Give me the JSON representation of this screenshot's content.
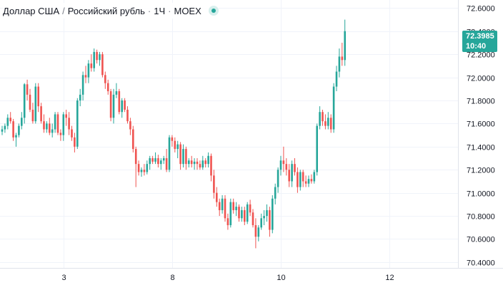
{
  "header": {
    "symbol": "Доллар США",
    "separator1": "/",
    "quote": "Российский рубль",
    "separator2": "·",
    "interval": "1Ч",
    "separator3": "·",
    "exchange": "MOEX"
  },
  "last_price": {
    "value": "72.3985",
    "countdown": "10:40"
  },
  "colors": {
    "up": "#26a69a",
    "down": "#ef5350",
    "grid": "#f0f3fa",
    "axis_text": "#131722",
    "axis_line": "#e0e3eb"
  },
  "chart_data": {
    "type": "candlestick",
    "title": "",
    "xlabel": "",
    "ylabel": "",
    "ylim": [
      70.35,
      72.67
    ],
    "grid": true,
    "y_ticks": [
      "72.6000",
      "72.4000",
      "72.2000",
      "72.0000",
      "71.8000",
      "71.6000",
      "71.4000",
      "71.2000",
      "71.0000",
      "70.8000",
      "70.6000",
      "70.4000"
    ],
    "x_ticks": [
      {
        "label": "3",
        "index": 22
      },
      {
        "label": "8",
        "index": 61
      },
      {
        "label": "10",
        "index": 100
      },
      {
        "label": "12",
        "index": 139
      }
    ],
    "ohlc": [
      [
        71.53,
        71.58,
        71.5,
        71.55
      ],
      [
        71.55,
        71.6,
        71.52,
        71.58
      ],
      [
        71.58,
        71.68,
        71.55,
        71.65
      ],
      [
        71.65,
        71.7,
        71.6,
        71.62
      ],
      [
        71.62,
        71.64,
        71.45,
        71.48
      ],
      [
        71.48,
        71.52,
        71.4,
        71.5
      ],
      [
        71.5,
        71.6,
        71.48,
        71.58
      ],
      [
        71.58,
        71.7,
        71.55,
        71.65
      ],
      [
        71.65,
        71.95,
        71.6,
        71.94
      ],
      [
        71.94,
        71.98,
        71.8,
        71.85
      ],
      [
        71.85,
        71.9,
        71.7,
        71.72
      ],
      [
        71.72,
        71.78,
        71.6,
        71.62
      ],
      [
        71.62,
        71.95,
        71.6,
        71.92
      ],
      [
        71.92,
        71.95,
        71.7,
        71.75
      ],
      [
        71.75,
        71.78,
        71.6,
        71.62
      ],
      [
        71.62,
        71.68,
        71.52,
        71.55
      ],
      [
        71.55,
        71.62,
        71.52,
        71.6
      ],
      [
        71.6,
        71.65,
        71.5,
        71.52
      ],
      [
        71.52,
        71.6,
        71.48,
        71.55
      ],
      [
        71.55,
        71.7,
        71.52,
        71.68
      ],
      [
        71.68,
        71.7,
        71.5,
        71.52
      ],
      [
        71.52,
        71.55,
        71.45,
        71.5
      ],
      [
        71.5,
        71.7,
        71.45,
        71.68
      ],
      [
        71.68,
        71.72,
        71.58,
        71.65
      ],
      [
        71.65,
        71.7,
        71.5,
        71.55
      ],
      [
        71.55,
        71.58,
        71.45,
        71.48
      ],
      [
        71.48,
        71.52,
        71.35,
        71.4
      ],
      [
        71.4,
        71.82,
        71.38,
        71.8
      ],
      [
        71.8,
        71.9,
        71.75,
        71.85
      ],
      [
        71.85,
        72.05,
        71.8,
        72.02
      ],
      [
        72.02,
        72.1,
        71.95,
        72.0
      ],
      [
        72.0,
        72.15,
        71.95,
        72.12
      ],
      [
        72.12,
        72.2,
        72.05,
        72.08
      ],
      [
        72.08,
        72.25,
        72.05,
        72.22
      ],
      [
        72.22,
        72.24,
        72.12,
        72.15
      ],
      [
        72.15,
        72.22,
        72.1,
        72.2
      ],
      [
        72.2,
        72.22,
        72.0,
        72.02
      ],
      [
        72.02,
        72.05,
        71.9,
        71.95
      ],
      [
        71.95,
        71.98,
        71.85,
        71.88
      ],
      [
        71.88,
        71.9,
        71.62,
        71.65
      ],
      [
        71.65,
        71.9,
        71.6,
        71.85
      ],
      [
        71.85,
        71.95,
        71.82,
        71.88
      ],
      [
        71.88,
        71.9,
        71.68,
        71.7
      ],
      [
        71.7,
        71.82,
        71.65,
        71.8
      ],
      [
        71.8,
        71.82,
        71.7,
        71.72
      ],
      [
        71.72,
        71.75,
        71.6,
        71.62
      ],
      [
        71.62,
        71.65,
        71.5,
        71.55
      ],
      [
        71.55,
        71.58,
        71.35,
        71.38
      ],
      [
        71.38,
        71.4,
        71.05,
        71.25
      ],
      [
        71.25,
        71.28,
        71.15,
        71.18
      ],
      [
        71.18,
        71.22,
        71.14,
        71.2
      ],
      [
        71.2,
        71.25,
        71.15,
        71.18
      ],
      [
        71.18,
        71.28,
        71.16,
        71.25
      ],
      [
        71.25,
        71.32,
        71.2,
        71.3
      ],
      [
        71.3,
        71.32,
        71.25,
        71.27
      ],
      [
        71.27,
        71.35,
        71.25,
        71.3
      ],
      [
        71.3,
        71.33,
        71.22,
        71.25
      ],
      [
        71.25,
        71.3,
        71.2,
        71.28
      ],
      [
        71.28,
        71.32,
        71.25,
        71.3
      ],
      [
        71.3,
        71.38,
        71.18,
        71.2
      ],
      [
        71.2,
        71.5,
        71.18,
        71.48
      ],
      [
        71.48,
        71.5,
        71.4,
        71.45
      ],
      [
        71.45,
        71.48,
        71.35,
        71.38
      ],
      [
        71.38,
        71.45,
        71.3,
        71.42
      ],
      [
        71.42,
        71.44,
        71.2,
        71.25
      ],
      [
        71.25,
        71.42,
        71.22,
        71.38
      ],
      [
        71.38,
        71.4,
        71.2,
        71.25
      ],
      [
        71.25,
        71.3,
        71.22,
        71.28
      ],
      [
        71.28,
        71.32,
        71.22,
        71.25
      ],
      [
        71.25,
        71.3,
        71.2,
        71.27
      ],
      [
        71.27,
        71.3,
        71.2,
        71.25
      ],
      [
        71.25,
        71.28,
        71.2,
        71.22
      ],
      [
        71.22,
        71.32,
        71.2,
        71.28
      ],
      [
        71.28,
        71.3,
        71.22,
        71.25
      ],
      [
        71.25,
        71.35,
        71.22,
        71.32
      ],
      [
        71.32,
        71.34,
        71.1,
        71.15
      ],
      [
        71.15,
        71.2,
        70.95,
        71.0
      ],
      [
        71.0,
        71.05,
        70.88,
        70.92
      ],
      [
        70.92,
        70.95,
        70.8,
        70.85
      ],
      [
        70.85,
        70.98,
        70.82,
        70.95
      ],
      [
        70.95,
        70.98,
        70.75,
        70.78
      ],
      [
        70.78,
        70.82,
        70.68,
        70.72
      ],
      [
        70.72,
        70.95,
        70.7,
        70.92
      ],
      [
        70.92,
        70.95,
        70.82,
        70.85
      ],
      [
        70.85,
        70.92,
        70.8,
        70.88
      ],
      [
        70.88,
        70.9,
        70.75,
        70.78
      ],
      [
        70.78,
        70.88,
        70.75,
        70.85
      ],
      [
        70.85,
        70.88,
        70.72,
        70.75
      ],
      [
        70.75,
        70.92,
        70.73,
        70.9
      ],
      [
        70.9,
        70.94,
        70.8,
        70.83
      ],
      [
        70.83,
        70.86,
        70.7,
        70.72
      ],
      [
        70.72,
        70.78,
        70.52,
        70.62
      ],
      [
        70.62,
        70.72,
        70.58,
        70.7
      ],
      [
        70.7,
        70.82,
        70.68,
        70.78
      ],
      [
        70.78,
        70.85,
        70.72,
        70.8
      ],
      [
        70.8,
        70.9,
        70.75,
        70.85
      ],
      [
        70.85,
        70.88,
        70.62,
        70.68
      ],
      [
        70.68,
        70.98,
        70.65,
        70.95
      ],
      [
        70.95,
        71.08,
        70.9,
        71.05
      ],
      [
        71.05,
        71.22,
        71.0,
        71.2
      ],
      [
        71.2,
        71.32,
        71.15,
        71.28
      ],
      [
        71.28,
        71.4,
        71.18,
        71.25
      ],
      [
        71.25,
        71.3,
        71.15,
        71.2
      ],
      [
        71.2,
        71.25,
        71.05,
        71.1
      ],
      [
        71.1,
        71.28,
        71.05,
        71.25
      ],
      [
        71.25,
        71.3,
        71.15,
        71.18
      ],
      [
        71.18,
        71.22,
        71.0,
        71.05
      ],
      [
        71.05,
        71.2,
        71.02,
        71.18
      ],
      [
        71.18,
        71.2,
        71.05,
        71.1
      ],
      [
        71.1,
        71.15,
        71.05,
        71.08
      ],
      [
        71.08,
        71.15,
        71.05,
        71.12
      ],
      [
        71.12,
        71.16,
        71.08,
        71.1
      ],
      [
        71.1,
        71.2,
        71.08,
        71.18
      ],
      [
        71.18,
        71.6,
        71.15,
        71.58
      ],
      [
        71.58,
        71.75,
        71.55,
        71.7
      ],
      [
        71.7,
        71.72,
        71.58,
        71.62
      ],
      [
        71.62,
        71.68,
        71.55,
        71.58
      ],
      [
        71.58,
        71.7,
        71.55,
        71.65
      ],
      [
        71.65,
        71.68,
        71.52,
        71.55
      ],
      [
        71.55,
        71.95,
        71.52,
        71.92
      ],
      [
        71.92,
        72.1,
        71.88,
        72.05
      ],
      [
        72.05,
        72.25,
        72.0,
        72.18
      ],
      [
        72.18,
        72.3,
        72.1,
        72.15
      ],
      [
        72.15,
        72.5,
        72.1,
        72.4
      ]
    ]
  }
}
